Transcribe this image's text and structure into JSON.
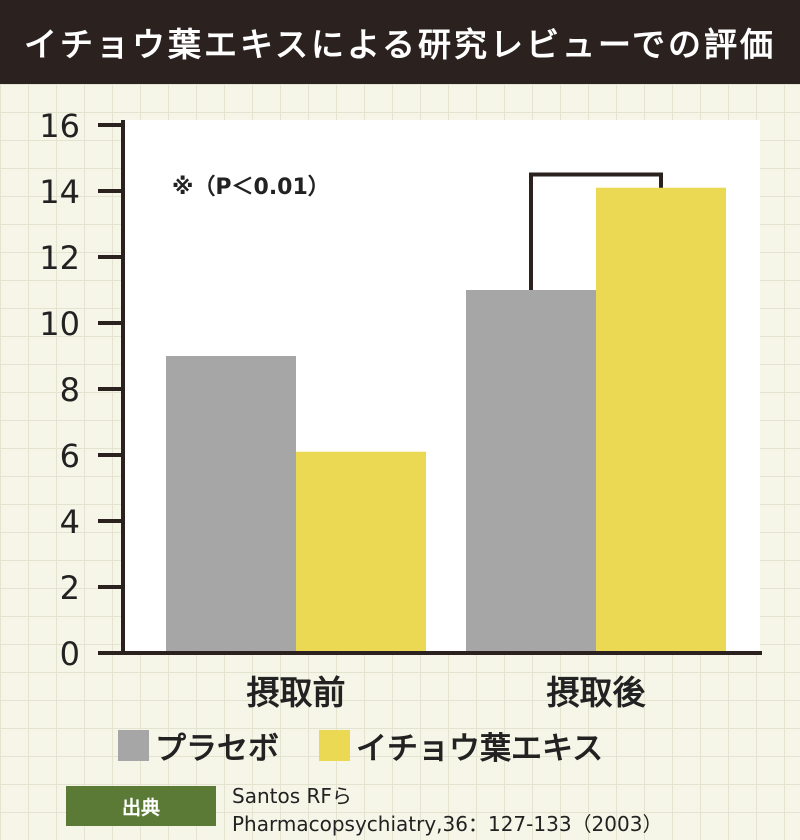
{
  "header": {
    "title": "イチョウ葉エキスによる研究レビューでの評価"
  },
  "chart_data": {
    "type": "bar",
    "title": "イチョウ葉エキスによる研究レビューでの評価",
    "categories": [
      "摂取前",
      "摂取後"
    ],
    "series": [
      {
        "name": "プラセボ",
        "values": [
          9.0,
          11.0
        ],
        "color": "#a6a6a6"
      },
      {
        "name": "イチョウ葉エキス",
        "values": [
          6.1,
          14.1
        ],
        "color": "#ecd953"
      }
    ],
    "ylim": [
      0,
      16
    ],
    "yticks": [
      0,
      2,
      4,
      6,
      8,
      10,
      12,
      14,
      16
    ],
    "ytick_labels": [
      "0",
      "2",
      "4",
      "6",
      "8",
      "10",
      "12",
      "14",
      "16"
    ],
    "xlabel": "",
    "ylabel": "",
    "grid": false,
    "legend": "bottom",
    "annotation": "※（P＜0.01）",
    "significance_bracket": {
      "category": "摂取後",
      "between": [
        "プラセボ",
        "イチョウ葉エキス"
      ],
      "level": 14.5
    }
  },
  "legend": {
    "items": [
      {
        "label": "プラセボ",
        "color": "#a6a6a6"
      },
      {
        "label": "イチョウ葉エキス",
        "color": "#ecd953"
      }
    ]
  },
  "source": {
    "badge": "出典",
    "line1": "Santos RFら",
    "line2": "Pharmacopsychiatry,36：127-133（2003）"
  }
}
